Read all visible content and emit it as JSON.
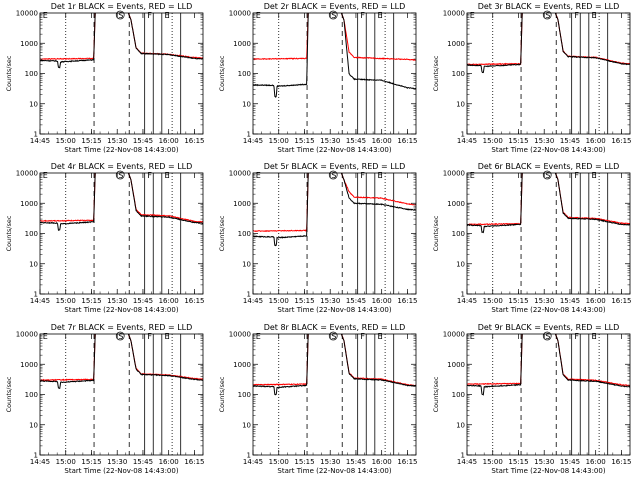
{
  "chart_data": {
    "type": "line",
    "scale": "log",
    "ylim": [
      1,
      10000
    ],
    "yticks": [
      "1",
      "10",
      "100",
      "1000",
      "10000"
    ],
    "xticks": [
      "14:45",
      "15:00",
      "15:15",
      "15:30",
      "15:45",
      "16:00",
      "16:15"
    ],
    "xlim_minutes": [
      885,
      980
    ],
    "xtick_minutes": [
      885,
      900,
      915,
      930,
      945,
      960,
      975
    ],
    "ylabel": "Counts/sec",
    "xlabel": "Start Time (22-Nov-08 14:43:00)",
    "series_colors": {
      "events": "#000000",
      "lld": "#ff0000"
    },
    "vlines": [
      {
        "t": 900,
        "style": "dotted"
      },
      {
        "t": 916.5,
        "style": "dashed"
      },
      {
        "t": 937,
        "style": "dashed"
      },
      {
        "t": 946,
        "style": "solid"
      },
      {
        "t": 951,
        "style": "solid"
      },
      {
        "t": 956,
        "style": "solid"
      },
      {
        "t": 962,
        "style": "dotted"
      },
      {
        "t": 967,
        "style": "solid"
      }
    ],
    "markers": [
      {
        "label": "E",
        "t": 886
      },
      {
        "label": "S",
        "t": 930
      },
      {
        "label": "F",
        "t": 947
      },
      {
        "label": "E",
        "t": 957
      }
    ],
    "panels": [
      {
        "title": "Det 1r BLACK = Events, RED = LLD",
        "black": {
          "base": 270,
          "dip": 160,
          "bump_t": 896,
          "flare": 12000,
          "post": 460,
          "late": 300
        },
        "red": {
          "base": 300,
          "flare": 12000,
          "post": 470,
          "late": 320
        }
      },
      {
        "title": "Det 2r BLACK = Events, RED = LLD",
        "black": {
          "base": 42,
          "dip": 17,
          "bump_t": 898,
          "flare": 12000,
          "post": 65,
          "late": 32
        },
        "red": {
          "base": 300,
          "flare": 12000,
          "post": 340,
          "late": 280
        }
      },
      {
        "title": "Det 3r BLACK = Events, RED = LLD",
        "black": {
          "base": 190,
          "dip": 110,
          "bump_t": 894,
          "flare": 12000,
          "post": 360,
          "late": 200
        },
        "red": {
          "base": 200,
          "flare": 12000,
          "post": 370,
          "late": 210
        }
      },
      {
        "title": "Det 4r BLACK = Events, RED = LLD",
        "black": {
          "base": 230,
          "dip": 130,
          "bump_t": 896,
          "flare": 12000,
          "post": 380,
          "late": 220
        },
        "red": {
          "base": 260,
          "flare": 12000,
          "post": 420,
          "late": 240
        }
      },
      {
        "title": "Det 5r BLACK = Events, RED = LLD",
        "black": {
          "base": 80,
          "dip": 40,
          "bump_t": 898,
          "flare": 12000,
          "post": 1000,
          "late": 600
        },
        "red": {
          "base": 120,
          "flare": 12000,
          "post": 1600,
          "late": 900
        }
      },
      {
        "title": "Det 6r BLACK = Events, RED = LLD",
        "black": {
          "base": 190,
          "dip": 110,
          "bump_t": 894,
          "flare": 12000,
          "post": 320,
          "late": 190
        },
        "red": {
          "base": 200,
          "flare": 12000,
          "post": 340,
          "late": 210
        }
      },
      {
        "title": "Det 7r BLACK = Events, RED = LLD",
        "black": {
          "base": 280,
          "dip": 160,
          "bump_t": 896,
          "flare": 12000,
          "post": 460,
          "late": 300
        },
        "red": {
          "base": 300,
          "flare": 12000,
          "post": 480,
          "late": 320
        }
      },
      {
        "title": "Det 8r BLACK = Events, RED = LLD",
        "black": {
          "base": 190,
          "dip": 100,
          "bump_t": 898,
          "flare": 12000,
          "post": 330,
          "late": 190
        },
        "red": {
          "base": 210,
          "flare": 12000,
          "post": 350,
          "late": 200
        }
      },
      {
        "title": "Det 9r BLACK = Events, RED = LLD",
        "black": {
          "base": 200,
          "dip": 100,
          "bump_t": 894,
          "flare": 12000,
          "post": 300,
          "late": 180
        },
        "red": {
          "base": 220,
          "flare": 12000,
          "post": 320,
          "late": 200
        }
      }
    ]
  }
}
